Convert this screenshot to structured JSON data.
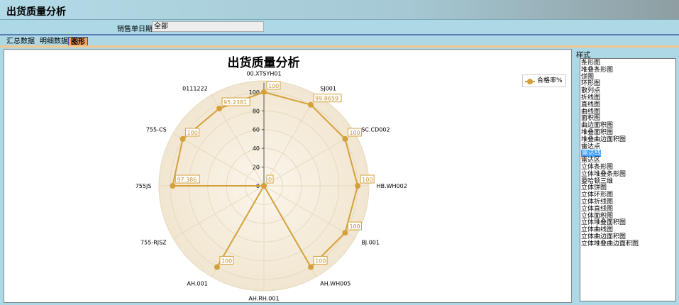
{
  "window": {
    "title": "出货质量分析"
  },
  "filter": {
    "label": "销售单日期",
    "value": "全部"
  },
  "tabs": [
    {
      "label": "汇总数据",
      "active": false
    },
    {
      "label": "明细数据",
      "active": false
    },
    {
      "label": "图形",
      "active": true
    }
  ],
  "style_panel": {
    "label": "样式",
    "options": [
      "条形图",
      "堆叠条形图",
      "饼图",
      "环形图",
      "散列点",
      "折线图",
      "直线图",
      "曲线图",
      "面积图",
      "曲边面积图",
      "堆叠面积图",
      "堆叠曲边面积图",
      "雷达点",
      "雷达线",
      "雷达区",
      "立体条形图",
      "立体堆叠条形图",
      "曼哈顿三维",
      "立体饼图",
      "立体环形图",
      "立体折线图",
      "立体直线图",
      "立体面积图",
      "立体堆叠面积图",
      "立体曲线图",
      "立体曲边面积图",
      "立体堆叠曲边面积图"
    ],
    "selected": "雷达线"
  },
  "colors": {
    "series": "#d4a03a",
    "label_text": "#c8902a",
    "plot_bg": "#f5ecdc"
  },
  "chart_data": {
    "type": "radar-line",
    "title": "出货质量分析",
    "categories": [
      "00.XTSYH01",
      "SJ001",
      "SC.CD002",
      "HB.WH002",
      "BJ.001",
      "AH.WH005",
      "AH.RH.001",
      "AH.001",
      "755-RJSZ",
      "755JS",
      "755-CS",
      "0111222"
    ],
    "series": [
      {
        "name": "合格率%",
        "values": [
          100,
          99.8659,
          100,
          100,
          100,
          100,
          0,
          100,
          0,
          97.386,
          100,
          95.2381
        ],
        "labels": [
          "100",
          "99.8659",
          "100",
          "100",
          "100",
          "100",
          "0",
          "100",
          "0",
          "97.386",
          "100",
          "95.2381"
        ]
      }
    ],
    "radial_ticks": [
      0,
      20,
      40,
      60,
      80,
      100
    ],
    "rlim": [
      0,
      112
    ],
    "legend": "top-right",
    "grid": true
  }
}
